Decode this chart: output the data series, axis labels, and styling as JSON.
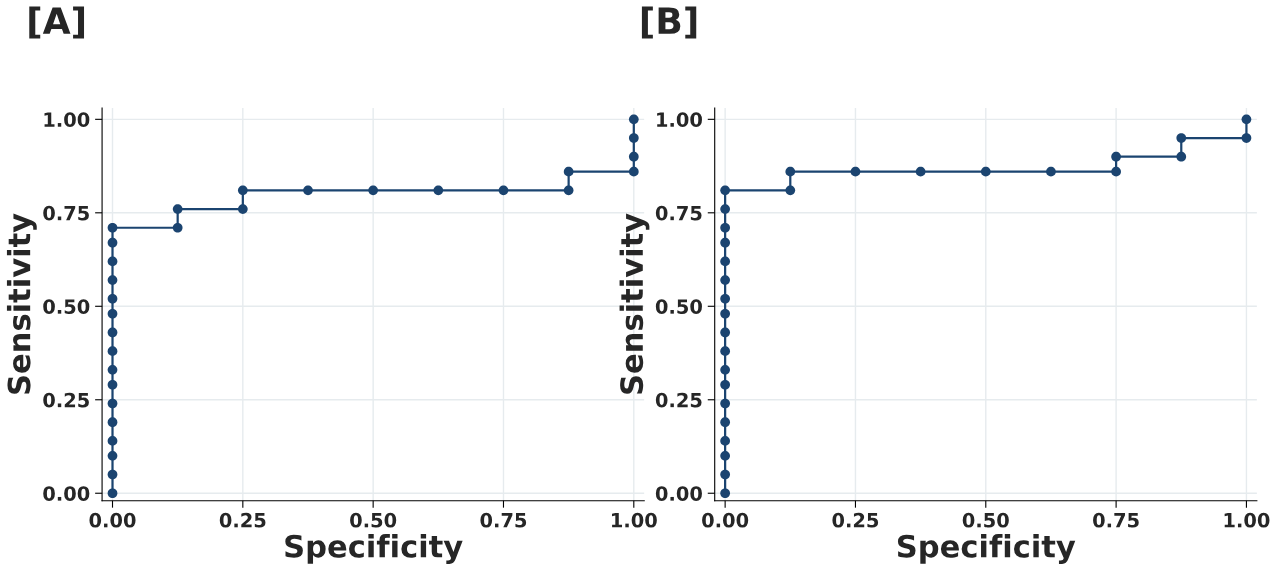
{
  "chart_data": [
    {
      "type": "line",
      "title": "[A]",
      "xlabel": "Specificity",
      "ylabel": "Sensitivity",
      "xlim": [
        -0.02,
        1.02
      ],
      "ylim": [
        -0.02,
        1.03
      ],
      "xticks": [
        {
          "value": 0,
          "label": "0.00"
        },
        {
          "value": 0.25,
          "label": "0.25"
        },
        {
          "value": 0.5,
          "label": "0.50"
        },
        {
          "value": 0.75,
          "label": "0.75"
        },
        {
          "value": 1,
          "label": "1.00"
        }
      ],
      "yticks": [
        {
          "value": 0,
          "label": "0.00"
        },
        {
          "value": 0.25,
          "label": "0.25"
        },
        {
          "value": 0.5,
          "label": "0.50"
        },
        {
          "value": 0.75,
          "label": "0.75"
        },
        {
          "value": 1,
          "label": "1.00"
        }
      ],
      "grid": true,
      "marker": "circle",
      "line_style": "solid",
      "series": [
        {
          "color": "#1b4470",
          "x": [
            0,
            0,
            0,
            0,
            0,
            0,
            0,
            0,
            0,
            0,
            0,
            0,
            0,
            0,
            0,
            0,
            0.125,
            0.125,
            0.25,
            0.25,
            0.375,
            0.5,
            0.625,
            0.75,
            0.875,
            0.875,
            1,
            1,
            1,
            1
          ],
          "values": [
            0,
            0.05,
            0.1,
            0.14,
            0.19,
            0.24,
            0.29,
            0.33,
            0.38,
            0.43,
            0.48,
            0.52,
            0.57,
            0.62,
            0.67,
            0.71,
            0.71,
            0.76,
            0.76,
            0.81,
            0.81,
            0.81,
            0.81,
            0.81,
            0.81,
            0.86,
            0.86,
            0.9,
            0.95,
            1.0
          ]
        }
      ]
    },
    {
      "type": "line",
      "title": "[B]",
      "xlabel": "Specificity",
      "ylabel": "Sensitivity",
      "xlim": [
        -0.02,
        1.02
      ],
      "ylim": [
        -0.02,
        1.03
      ],
      "xticks": [
        {
          "value": 0,
          "label": "0.00"
        },
        {
          "value": 0.25,
          "label": "0.25"
        },
        {
          "value": 0.5,
          "label": "0.50"
        },
        {
          "value": 0.75,
          "label": "0.75"
        },
        {
          "value": 1,
          "label": "1.00"
        }
      ],
      "yticks": [
        {
          "value": 0,
          "label": "0.00"
        },
        {
          "value": 0.25,
          "label": "0.25"
        },
        {
          "value": 0.5,
          "label": "0.50"
        },
        {
          "value": 0.75,
          "label": "0.75"
        },
        {
          "value": 1,
          "label": "1.00"
        }
      ],
      "grid": true,
      "marker": "circle",
      "line_style": "solid",
      "series": [
        {
          "color": "#1b4470",
          "x": [
            0,
            0,
            0,
            0,
            0,
            0,
            0,
            0,
            0,
            0,
            0,
            0,
            0,
            0,
            0,
            0,
            0,
            0,
            0.125,
            0.125,
            0.25,
            0.375,
            0.5,
            0.625,
            0.75,
            0.75,
            0.875,
            0.875,
            1,
            1
          ],
          "values": [
            0,
            0.05,
            0.1,
            0.14,
            0.19,
            0.24,
            0.29,
            0.33,
            0.38,
            0.43,
            0.48,
            0.52,
            0.57,
            0.62,
            0.67,
            0.71,
            0.76,
            0.81,
            0.81,
            0.86,
            0.86,
            0.86,
            0.86,
            0.86,
            0.86,
            0.9,
            0.9,
            0.95,
            0.95,
            1.0
          ]
        }
      ]
    }
  ]
}
